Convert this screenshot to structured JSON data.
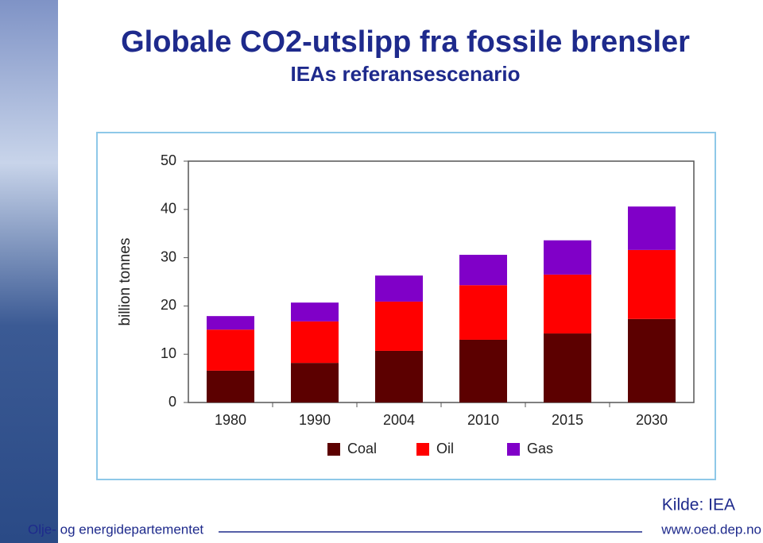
{
  "chart_data": {
    "type": "stacked_bar",
    "title": "Globale CO2-utslipp fra fossile brensler",
    "subtitle": "IEAs referansescenario",
    "y_label": "billion tonnes",
    "categories": [
      "1980",
      "1990",
      "2004",
      "2010",
      "2015",
      "2030"
    ],
    "series": [
      {
        "name": "Coal",
        "color": "#5c0000",
        "values": [
          6.6,
          8.2,
          10.7,
          13.0,
          14.3,
          17.3
        ]
      },
      {
        "name": "Oil",
        "color": "#ff0000",
        "values": [
          8.5,
          8.6,
          10.2,
          11.3,
          12.2,
          14.3
        ]
      },
      {
        "name": "Gas",
        "color": "#8000c8",
        "values": [
          2.8,
          3.9,
          5.4,
          6.3,
          7.1,
          9.0
        ]
      }
    ],
    "ylim": [
      0,
      50
    ],
    "yticks": [
      0,
      10,
      20,
      30,
      40,
      50
    ],
    "grid": false
  },
  "footer": {
    "source": "Kilde: IEA",
    "organization": "Olje- og energidepartementet",
    "url": "www.oed.dep.no"
  }
}
